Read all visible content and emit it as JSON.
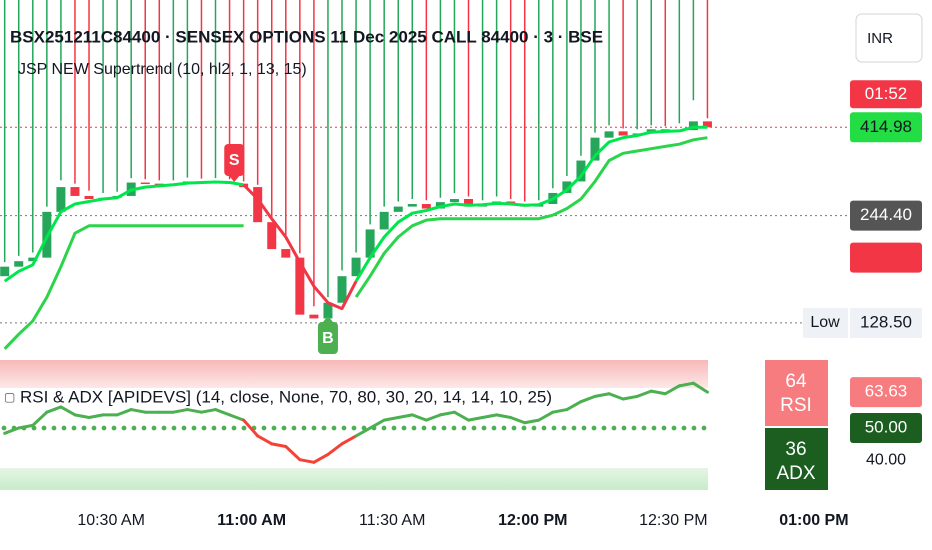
{
  "header": {
    "title": "BSX251211C84400 · SENSEX OPTIONS 11 Dec 2025 CALL 84400 · 3 · BSE",
    "indicator": "JSP NEW Supertrend (10, hl2, 1, 13, 15)",
    "currency": "INR"
  },
  "chart_data": [
    {
      "type": "candlestick",
      "x": [
        606,
        609,
        612,
        615,
        618,
        621,
        624,
        627,
        630,
        633,
        636,
        639,
        642,
        645,
        648,
        651,
        654,
        657,
        660,
        663,
        666,
        669,
        672,
        675,
        678,
        681,
        684,
        687,
        690,
        693,
        696,
        699,
        702,
        705,
        708,
        711,
        714,
        717,
        720,
        723,
        726,
        729,
        732,
        735,
        738,
        741,
        744,
        747,
        750,
        753,
        756
      ],
      "open": [
        170,
        180,
        186,
        190,
        250,
        290,
        275,
        270,
        272,
        275,
        298,
        296,
        294,
        296,
        300,
        298,
        300,
        296,
        290,
        235,
        200,
        190,
        135,
        132,
        145,
        170,
        190,
        225,
        250,
        258,
        262,
        255,
        265,
        270,
        258,
        262,
        266,
        262,
        258,
        262,
        280,
        300,
        340,
        390,
        405,
        395,
        400,
        410,
        405,
        408,
        430
      ],
      "high": [
        185,
        192,
        196,
        258,
        302,
        296,
        284,
        280,
        282,
        306,
        304,
        302,
        302,
        307,
        305,
        306,
        304,
        300,
        294,
        240,
        212,
        195,
        142,
        150,
        176,
        196,
        232,
        258,
        266,
        270,
        268,
        272,
        280,
        274,
        268,
        274,
        270,
        266,
        268,
        288,
        310,
        350,
        402,
        420,
        412,
        410,
        420,
        418,
        425,
        488,
        438
      ],
      "low": {
        "value": 128.5,
        "label": "128.50"
      },
      "close": [
        180,
        186,
        190,
        250,
        290,
        275,
        270,
        272,
        275,
        298,
        296,
        294,
        296,
        300,
        298,
        300,
        296,
        290,
        235,
        200,
        190,
        135,
        132,
        145,
        170,
        190,
        225,
        250,
        258,
        262,
        255,
        265,
        270,
        258,
        262,
        266,
        262,
        258,
        262,
        280,
        300,
        340,
        390,
        405,
        395,
        400,
        410,
        405,
        408,
        430,
        414.98
      ],
      "up_color": "#26a65b",
      "down_color": "#f23645",
      "series": [
        {
          "color": "#00e64d",
          "values": [
            165,
            175,
            182,
            215,
            250,
            262,
            266,
            270,
            272,
            285,
            290,
            292,
            294,
            297,
            298,
            299,
            298,
            294,
            null,
            null,
            null,
            null,
            null,
            null,
            null,
            165,
            190,
            215,
            235,
            248,
            252,
            258,
            262,
            260,
            261,
            263,
            262,
            260,
            261,
            270,
            285,
            310,
            350,
            380,
            390,
            395,
            403,
            405,
            406,
            415,
            415
          ]
        },
        {
          "color": "#2bd44a",
          "values": [
            110,
            120,
            130,
            150,
            180,
            220,
            230,
            230,
            230,
            230,
            230,
            230,
            230,
            230,
            230,
            230,
            230,
            230,
            null,
            null,
            null,
            null,
            null,
            null,
            null,
            150,
            170,
            195,
            215,
            230,
            238,
            240,
            240,
            240,
            240,
            240,
            240,
            240,
            240,
            245,
            255,
            270,
            300,
            340,
            355,
            360,
            365,
            370,
            375,
            385,
            390
          ]
        },
        {
          "color": "#f23645",
          "values": [
            null,
            null,
            null,
            null,
            null,
            null,
            null,
            null,
            null,
            null,
            null,
            null,
            null,
            null,
            null,
            null,
            null,
            294,
            270,
            240,
            215,
            185,
            160,
            145,
            140,
            165,
            null,
            null,
            null,
            null,
            null,
            null,
            null,
            null,
            null,
            null,
            null,
            null,
            null,
            null,
            null,
            null,
            null,
            null,
            null,
            null,
            null,
            null,
            null,
            null,
            null
          ]
        }
      ],
      "xlim": [
        605,
        786
      ],
      "xticks": [
        {
          "value": 630,
          "label": "10:30 AM"
        },
        {
          "value": 660,
          "label": "11:00 AM"
        },
        {
          "value": 690,
          "label": "11:30 AM"
        },
        {
          "value": 720,
          "label": "12:00 PM"
        },
        {
          "value": 750,
          "label": "12:30 PM"
        },
        {
          "value": 780,
          "label": "01:00 PM"
        }
      ],
      "ylim": [
        106,
        890
      ],
      "log_scale": true,
      "last_price": 414.98,
      "countdown": "01:52",
      "level_labels": [
        {
          "value": 244.4,
          "label": "244.40",
          "color": "#555555"
        },
        {
          "value": 190.08,
          "color": "#f23645"
        }
      ],
      "low_text": "Low",
      "markers": [
        {
          "x": 655,
          "label": "S",
          "color": "#f23645"
        },
        {
          "x": 675,
          "label": "B",
          "color": "#4caf50"
        }
      ]
    },
    {
      "type": "line",
      "title": "RSI & ADX [APIDEVS] (14, close, None, 70, 80, 30, 20, 14, 14, 10, 25)",
      "x": [
        606,
        609,
        612,
        615,
        618,
        621,
        624,
        627,
        630,
        633,
        636,
        639,
        642,
        645,
        648,
        651,
        654,
        657,
        660,
        663,
        666,
        669,
        672,
        675,
        678,
        681,
        684,
        687,
        690,
        693,
        696,
        699,
        702,
        705,
        708,
        711,
        714,
        717,
        720,
        723,
        726,
        729,
        732,
        735,
        738,
        741,
        744,
        747,
        750,
        753,
        756
      ],
      "values": [
        48,
        50,
        51,
        56,
        58,
        55,
        54,
        55,
        55,
        57,
        56,
        56,
        56,
        57,
        56,
        57,
        55,
        53,
        47,
        44,
        43,
        38,
        37,
        40,
        44,
        47,
        50,
        53,
        54,
        55,
        53,
        55,
        56,
        53,
        54,
        55,
        54,
        52,
        53,
        56,
        57,
        60,
        62,
        63,
        61,
        62,
        64,
        63,
        66,
        67,
        63.63
      ],
      "up_color": "#4caf50",
      "down_color": "#f44336",
      "ylim": [
        26.5,
        75.8
      ],
      "yticks": [
        {
          "value": 40,
          "label": "40.00"
        }
      ],
      "midline": {
        "value": 50,
        "label": "50.00"
      },
      "last_value": 63.63,
      "badges": [
        {
          "value": 64,
          "label": "RSI",
          "color": "#f77c80"
        },
        {
          "value": 36,
          "label": "ADX",
          "color": "#1b5e20"
        }
      ]
    }
  ]
}
